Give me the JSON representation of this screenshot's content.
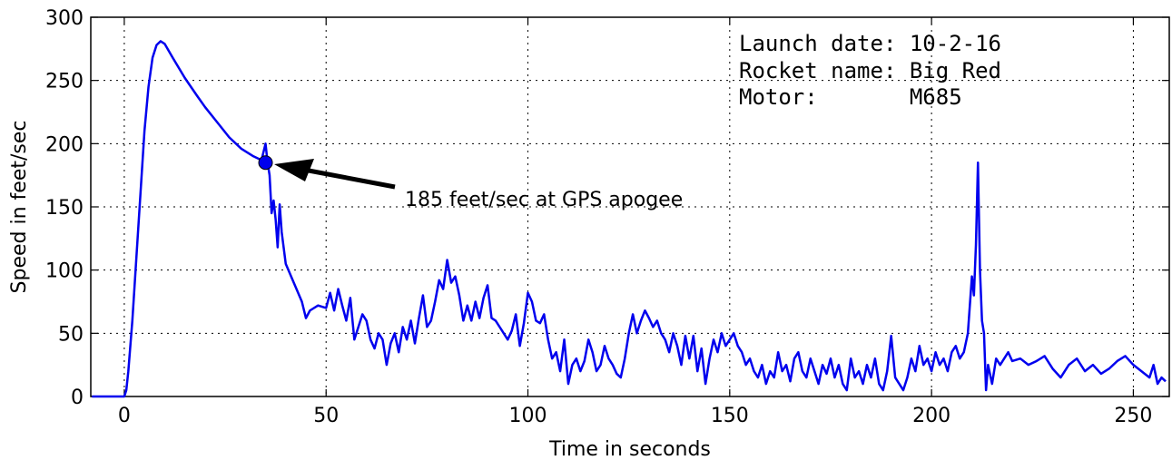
{
  "chart_data": {
    "type": "line",
    "xlabel": "Time in seconds",
    "ylabel": "Speed in feet/sec",
    "info": [
      "Launch date: 10-2-16",
      "Rocket name: Big Red",
      "Motor:       M685"
    ],
    "annotation": {
      "text": "185 feet/sec at GPS apogee",
      "x": 35,
      "y": 185
    },
    "color": "#0000ee",
    "xlim": [
      -8.3,
      258.9
    ],
    "ylim": [
      0,
      300
    ],
    "xticks": [
      0,
      50,
      100,
      150,
      200,
      250
    ],
    "yticks": [
      0,
      50,
      100,
      150,
      200,
      250,
      300
    ],
    "grid": true,
    "x": [
      -8,
      0,
      0.5,
      1,
      2,
      3,
      4,
      5,
      6,
      7,
      8,
      9,
      10,
      12,
      15,
      18,
      20,
      23,
      26,
      29,
      32,
      34,
      35,
      35.5,
      36,
      36.5,
      37,
      37.5,
      38,
      38.5,
      39,
      40,
      42,
      44,
      45,
      46,
      48,
      50,
      51,
      52,
      53,
      54,
      55,
      56,
      57,
      58,
      59,
      60,
      61,
      62,
      63,
      64,
      65,
      66,
      67,
      68,
      69,
      70,
      71,
      72,
      73,
      74,
      75,
      76,
      77,
      78,
      79,
      80,
      81,
      82,
      83,
      84,
      85,
      86,
      87,
      88,
      89,
      90,
      91,
      92,
      93,
      94,
      95,
      96,
      97,
      98,
      99,
      100,
      101,
      102,
      103,
      104,
      105,
      106,
      107,
      108,
      109,
      110,
      111,
      112,
      113,
      114,
      115,
      116,
      117,
      118,
      119,
      120,
      121,
      122,
      123,
      124,
      125,
      126,
      127,
      128,
      129,
      130,
      131,
      132,
      133,
      134,
      135,
      136,
      137,
      138,
      139,
      140,
      141,
      142,
      143,
      144,
      145,
      146,
      147,
      148,
      149,
      150,
      151,
      152,
      153,
      154,
      155,
      156,
      157,
      158,
      159,
      160,
      161,
      162,
      163,
      164,
      165,
      166,
      167,
      168,
      169,
      170,
      171,
      172,
      173,
      174,
      175,
      176,
      177,
      178,
      179,
      180,
      181,
      182,
      183,
      184,
      185,
      186,
      187,
      188,
      189,
      190,
      191,
      192,
      193,
      194,
      195,
      196,
      197,
      198,
      199,
      200,
      201,
      202,
      203,
      204,
      205,
      206,
      207,
      208,
      209,
      210,
      210.5,
      211,
      211.5,
      212,
      212.5,
      213,
      213.5,
      214,
      215,
      216,
      217,
      218,
      219,
      220,
      222,
      224,
      226,
      228,
      230,
      232,
      234,
      236,
      238,
      240,
      242,
      244,
      246,
      248,
      250,
      252,
      254,
      255,
      256,
      257,
      258
    ],
    "values": [
      0,
      0,
      5,
      20,
      60,
      110,
      160,
      210,
      245,
      268,
      278,
      281,
      279,
      268,
      252,
      238,
      229,
      217,
      205,
      196,
      190,
      187,
      200,
      185,
      175,
      145,
      155,
      140,
      118,
      152,
      130,
      105,
      90,
      75,
      62,
      68,
      72,
      70,
      82,
      68,
      85,
      72,
      60,
      78,
      45,
      55,
      65,
      60,
      45,
      38,
      50,
      45,
      25,
      42,
      50,
      35,
      55,
      45,
      60,
      42,
      62,
      80,
      55,
      60,
      75,
      92,
      85,
      108,
      90,
      95,
      80,
      60,
      72,
      60,
      75,
      62,
      78,
      88,
      62,
      60,
      55,
      50,
      45,
      52,
      65,
      40,
      58,
      82,
      75,
      60,
      58,
      65,
      45,
      30,
      35,
      20,
      45,
      10,
      25,
      30,
      20,
      28,
      45,
      35,
      20,
      25,
      40,
      30,
      25,
      18,
      15,
      30,
      50,
      65,
      50,
      60,
      68,
      62,
      55,
      60,
      50,
      45,
      35,
      50,
      40,
      25,
      48,
      30,
      48,
      20,
      38,
      10,
      30,
      45,
      35,
      50,
      40,
      45,
      50,
      40,
      35,
      25,
      30,
      20,
      15,
      25,
      10,
      20,
      15,
      35,
      20,
      25,
      12,
      30,
      35,
      20,
      15,
      30,
      20,
      10,
      25,
      18,
      30,
      15,
      25,
      10,
      5,
      30,
      15,
      20,
      10,
      25,
      15,
      30,
      10,
      5,
      20,
      48,
      15,
      10,
      5,
      15,
      30,
      20,
      40,
      25,
      30,
      20,
      35,
      25,
      30,
      20,
      35,
      40,
      30,
      35,
      50,
      95,
      80,
      120,
      185,
      100,
      60,
      50,
      5,
      25,
      10,
      30,
      25,
      30,
      35,
      28,
      30,
      25,
      28,
      32,
      22,
      15,
      25,
      30,
      20,
      25,
      18,
      22,
      28,
      32,
      25,
      20,
      15,
      25,
      10,
      15,
      12
    ]
  }
}
